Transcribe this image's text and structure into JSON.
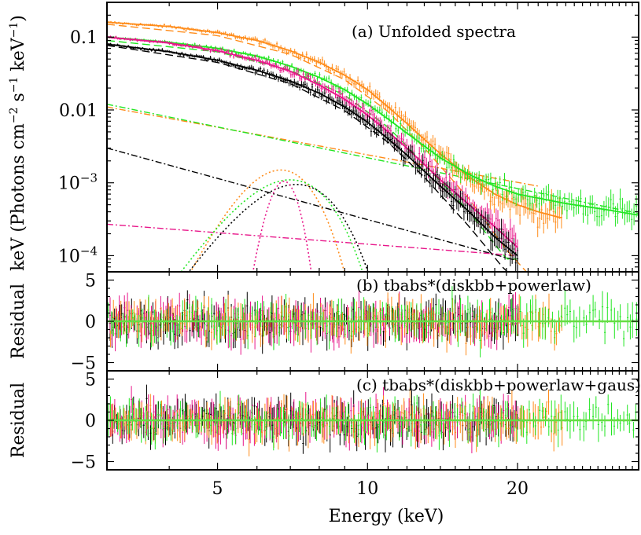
{
  "chart_data": {
    "type": "line",
    "x_scale": "log",
    "xlim": [
      3,
      35
    ],
    "x_ticks": [
      5,
      10,
      20
    ],
    "x_tick_labels": [
      "5",
      "10",
      "20"
    ],
    "xlabel": "Energy (keV)",
    "colors": {
      "black": "#000000",
      "magenta": "#e8168a",
      "orange": "#ff8c1a",
      "green": "#22e622",
      "fit_line": "#66dd44"
    },
    "panels": [
      {
        "id": "a",
        "title": "(a) Unfolded spectra",
        "ylabel_main": "keV (Photons cm",
        "ylabel_exp1": "−2",
        "ylabel_mid": " s",
        "ylabel_exp2": "−1",
        "ylabel_mid2": " keV",
        "ylabel_exp3": "−1",
        "ylabel_end": ")",
        "y_scale": "log",
        "ylim": [
          6e-05,
          0.3
        ],
        "y_tick_labels": [
          {
            "value": 0.1,
            "label": "0.1"
          },
          {
            "value": 0.01,
            "label": "0.01"
          },
          {
            "value": 0.001,
            "base": "10",
            "exp": "−3"
          },
          {
            "value": 0.0001,
            "base": "10",
            "exp": "−4"
          }
        ],
        "series": [
          {
            "color": "orange",
            "x_end": 24.5,
            "values": [
              [
                3.0,
                0.16
              ],
              [
                4.0,
                0.14
              ],
              [
                5.0,
                0.115
              ],
              [
                6.0,
                0.09
              ],
              [
                7.0,
                0.065
              ],
              [
                8.0,
                0.045
              ],
              [
                9.0,
                0.03
              ],
              [
                10.0,
                0.019
              ],
              [
                11.0,
                0.011
              ],
              [
                12.0,
                0.0065
              ],
              [
                14.0,
                0.0025
              ],
              [
                16.0,
                0.0012
              ],
              [
                18.0,
                0.0007
              ],
              [
                20.0,
                0.0005
              ],
              [
                22.0,
                0.0004
              ],
              [
                24.5,
                0.00033
              ]
            ]
          },
          {
            "color": "green",
            "x_end": 35,
            "values": [
              [
                3.0,
                0.1
              ],
              [
                4.0,
                0.085
              ],
              [
                5.0,
                0.07
              ],
              [
                6.0,
                0.055
              ],
              [
                7.0,
                0.04
              ],
              [
                8.0,
                0.028
              ],
              [
                9.0,
                0.019
              ],
              [
                10.0,
                0.012
              ],
              [
                11.0,
                0.0075
              ],
              [
                12.0,
                0.0048
              ],
              [
                14.0,
                0.0022
              ],
              [
                16.0,
                0.0013
              ],
              [
                18.0,
                0.0009
              ],
              [
                20.0,
                0.0007
              ],
              [
                25.0,
                0.00052
              ],
              [
                30.0,
                0.00043
              ],
              [
                35.0,
                0.00036
              ]
            ]
          },
          {
            "color": "magenta",
            "x_end": 20,
            "values": [
              [
                3.0,
                0.1
              ],
              [
                4.0,
                0.083
              ],
              [
                5.0,
                0.065
              ],
              [
                6.0,
                0.048
              ],
              [
                7.0,
                0.034
              ],
              [
                8.0,
                0.022
              ],
              [
                9.0,
                0.014
              ],
              [
                10.0,
                0.0085
              ],
              [
                11.0,
                0.005
              ],
              [
                12.0,
                0.003
              ],
              [
                14.0,
                0.0011
              ],
              [
                16.0,
                0.0005
              ],
              [
                18.0,
                0.00025
              ],
              [
                20.0,
                0.00013
              ]
            ]
          },
          {
            "color": "black",
            "x_end": 20,
            "values": [
              [
                3.0,
                0.08
              ],
              [
                4.0,
                0.063
              ],
              [
                5.0,
                0.048
              ],
              [
                6.0,
                0.035
              ],
              [
                7.0,
                0.025
              ],
              [
                8.0,
                0.017
              ],
              [
                9.0,
                0.011
              ],
              [
                10.0,
                0.0068
              ],
              [
                11.0,
                0.004
              ],
              [
                12.0,
                0.0024
              ],
              [
                14.0,
                0.0009
              ],
              [
                16.0,
                0.0004
              ],
              [
                18.0,
                0.00018
              ],
              [
                20.0,
                0.0001
              ]
            ]
          }
        ],
        "components": [
          {
            "color": "orange",
            "kind": "powerlaw",
            "x_end": 22,
            "values": [
              [
                3.0,
                0.011
              ],
              [
                22.0,
                0.0009
              ]
            ]
          },
          {
            "color": "green",
            "kind": "powerlaw",
            "x_end": 35,
            "values": [
              [
                3.0,
                0.012
              ],
              [
                35.0,
                0.00038
              ]
            ]
          },
          {
            "color": "black",
            "kind": "powerlaw",
            "x_end": 20,
            "values": [
              [
                3.0,
                0.003
              ],
              [
                20.0,
                8.5e-05
              ]
            ]
          },
          {
            "color": "magenta",
            "kind": "powerlaw",
            "x_end": 20,
            "values": [
              [
                3.0,
                0.00027
              ],
              [
                20.0,
                0.0001
              ]
            ]
          },
          {
            "color": "orange",
            "kind": "gaussian",
            "center": 6.7,
            "sigma": 0.9,
            "peak": 0.0015
          },
          {
            "color": "green",
            "kind": "gaussian",
            "center": 7.0,
            "sigma": 1.15,
            "peak": 0.0011
          },
          {
            "color": "black",
            "kind": "gaussian",
            "center": 7.2,
            "sigma": 1.2,
            "peak": 0.00095
          },
          {
            "color": "magenta",
            "kind": "gaussian",
            "center": 6.8,
            "sigma": 0.38,
            "peak": 0.00105
          },
          {
            "color": "orange",
            "kind": "diskbb",
            "x_end": 22,
            "values": [
              [
                3.0,
                0.15
              ],
              [
                5.0,
                0.105
              ],
              [
                7.0,
                0.058
              ],
              [
                9.0,
                0.026
              ],
              [
                11.0,
                0.0095
              ],
              [
                13.0,
                0.003
              ],
              [
                16.0,
                0.0006
              ],
              [
                19.0,
                0.00012
              ],
              [
                22.0,
                4e-05
              ]
            ]
          },
          {
            "color": "green",
            "kind": "diskbb",
            "x_end": 20,
            "values": [
              [
                3.0,
                0.09
              ],
              [
                5.0,
                0.063
              ],
              [
                7.0,
                0.035
              ],
              [
                9.0,
                0.016
              ],
              [
                11.0,
                0.0058
              ],
              [
                13.0,
                0.0018
              ],
              [
                16.0,
                0.0004
              ],
              [
                19.0,
                9e-05
              ]
            ]
          },
          {
            "color": "black",
            "kind": "diskbb",
            "x_end": 20,
            "values": [
              [
                3.0,
                0.077
              ],
              [
                5.0,
                0.045
              ],
              [
                7.0,
                0.023
              ],
              [
                9.0,
                0.0098
              ],
              [
                11.0,
                0.0036
              ],
              [
                13.0,
                0.0012
              ],
              [
                16.0,
                0.00025
              ],
              [
                19.0,
                6e-05
              ]
            ]
          }
        ]
      },
      {
        "id": "b",
        "title": "(b) tbabs*(diskbb+powerlaw)",
        "ylabel": "Residual",
        "ylim": [
          -6,
          6
        ],
        "y_ticks": [
          5,
          0,
          -5
        ],
        "y_tick_labels": [
          "5",
          "0",
          "−5"
        ]
      },
      {
        "id": "c",
        "title": "(c) tbabs*(diskbb+powerlaw+gaus)",
        "ylabel": "Residual",
        "ylim": [
          -6,
          6
        ],
        "y_ticks": [
          5,
          0,
          -5
        ],
        "y_tick_labels": [
          "5",
          "0",
          "−5"
        ]
      }
    ]
  }
}
